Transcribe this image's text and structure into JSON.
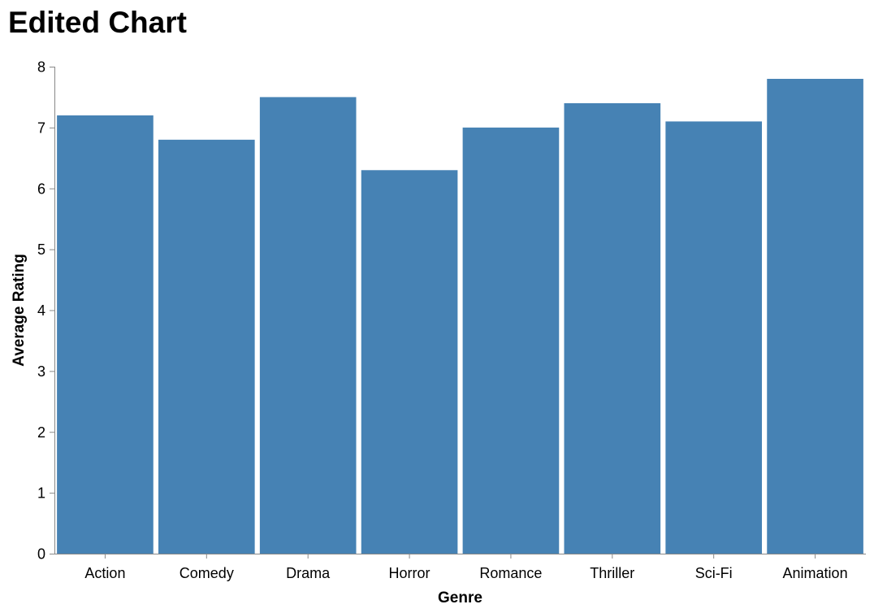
{
  "chart_data": {
    "type": "bar",
    "title": "Edited Chart",
    "xlabel": "Genre",
    "ylabel": "Average Rating",
    "categories": [
      "Action",
      "Comedy",
      "Drama",
      "Horror",
      "Romance",
      "Thriller",
      "Sci-Fi",
      "Animation"
    ],
    "values": [
      7.2,
      6.8,
      7.5,
      6.3,
      7.0,
      7.4,
      7.1,
      7.8
    ],
    "ylim": [
      0,
      8
    ],
    "yticks": [
      "0",
      "1",
      "2",
      "3",
      "4",
      "5",
      "6",
      "7",
      "8"
    ],
    "grid": false,
    "colors": {
      "bar": "#4682b4",
      "axis": "#888888"
    }
  }
}
